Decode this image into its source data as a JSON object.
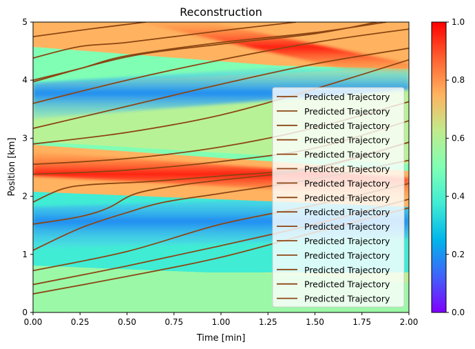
{
  "chart_data": {
    "type": "heatmap",
    "title": "Reconstruction",
    "xlabel": "Time [min]",
    "ylabel": "Position [km]",
    "xlim": [
      0,
      2
    ],
    "ylim": [
      0,
      5
    ],
    "x_ticks": [
      "0.00",
      "0.25",
      "0.50",
      "0.75",
      "1.00",
      "1.25",
      "1.50",
      "1.75",
      "2.00"
    ],
    "y_ticks": [
      "0",
      "1",
      "2",
      "3",
      "4",
      "5"
    ],
    "colorbar": {
      "range": [
        0,
        1
      ],
      "ticks": [
        "0.0",
        "0.2",
        "0.4",
        "0.6",
        "0.8",
        "1.0"
      ],
      "colormap": "rainbow"
    },
    "legend": {
      "placement": "lower-right",
      "line_color": "#8B4513"
    },
    "trajectory_color": "#8B4513",
    "series": [
      {
        "name": "Predicted Trajectory",
        "x": [
          0,
          0.5,
          1.0,
          1.5,
          2.0
        ],
        "y": [
          0.32,
          0.62,
          0.95,
          1.38,
          1.8
        ]
      },
      {
        "name": "Predicted Trajectory",
        "x": [
          0,
          0.5,
          1.0,
          1.5,
          2.0
        ],
        "y": [
          0.48,
          0.8,
          1.15,
          1.52,
          1.95
        ]
      },
      {
        "name": "Predicted Trajectory",
        "x": [
          0,
          0.5,
          1.0,
          1.5,
          2.0
        ],
        "y": [
          0.72,
          1.05,
          1.52,
          1.85,
          2.22
        ]
      },
      {
        "name": "Predicted Trajectory",
        "x": [
          0,
          0.25,
          0.5,
          0.7,
          1.0,
          1.5,
          2.0
        ],
        "y": [
          1.07,
          1.45,
          1.72,
          1.9,
          2.05,
          2.3,
          2.62
        ]
      },
      {
        "name": "Predicted Trajectory",
        "x": [
          0,
          0.25,
          0.4,
          0.55,
          0.8,
          1.0,
          1.5,
          2.0
        ],
        "y": [
          1.52,
          1.65,
          1.8,
          2.05,
          2.2,
          2.28,
          2.48,
          2.93
        ]
      },
      {
        "name": "Predicted Trajectory",
        "x": [
          0,
          0.15,
          0.3,
          0.6,
          1.0,
          1.5,
          2.0
        ],
        "y": [
          1.9,
          2.12,
          2.2,
          2.25,
          2.35,
          2.5,
          2.93
        ]
      },
      {
        "name": "Predicted Trajectory",
        "x": [
          0,
          0.5,
          1.0,
          1.5,
          2.0
        ],
        "y": [
          2.38,
          2.45,
          2.6,
          2.83,
          3.3
        ]
      },
      {
        "name": "Predicted Trajectory",
        "x": [
          0,
          0.5,
          1.0,
          1.5,
          2.0
        ],
        "y": [
          2.55,
          2.65,
          2.85,
          3.18,
          3.63
        ]
      },
      {
        "name": "Predicted Trajectory",
        "x": [
          0,
          0.5,
          1.0,
          1.5,
          2.0
        ],
        "y": [
          2.9,
          3.1,
          3.4,
          3.85,
          4.35
        ]
      },
      {
        "name": "Predicted Trajectory",
        "x": [
          0,
          0.5,
          1.0,
          1.5,
          2.0
        ],
        "y": [
          3.17,
          3.55,
          3.93,
          4.28,
          4.55
        ]
      },
      {
        "name": "Predicted Trajectory",
        "x": [
          0,
          0.5,
          1.0,
          1.5,
          2.0
        ],
        "y": [
          3.6,
          4.0,
          4.35,
          4.65,
          4.88
        ]
      },
      {
        "name": "Predicted Trajectory",
        "x": [
          0,
          0.5,
          1.0,
          1.5,
          1.83
        ],
        "y": [
          3.97,
          4.4,
          4.62,
          4.8,
          5.0
        ]
      },
      {
        "name": "Predicted Trajectory",
        "x": [
          0,
          0.25,
          0.5,
          1.0,
          1.5,
          1.88
        ],
        "y": [
          4.0,
          4.2,
          4.42,
          4.65,
          4.82,
          5.0
        ]
      },
      {
        "name": "Predicted Trajectory",
        "x": [
          0,
          0.25,
          0.5,
          1.0,
          1.4
        ],
        "y": [
          4.38,
          4.58,
          4.65,
          4.85,
          5.0
        ]
      },
      {
        "name": "Predicted Trajectory",
        "x": [
          0,
          0.3,
          0.6
        ],
        "y": [
          4.75,
          4.88,
          5.0
        ]
      }
    ]
  }
}
